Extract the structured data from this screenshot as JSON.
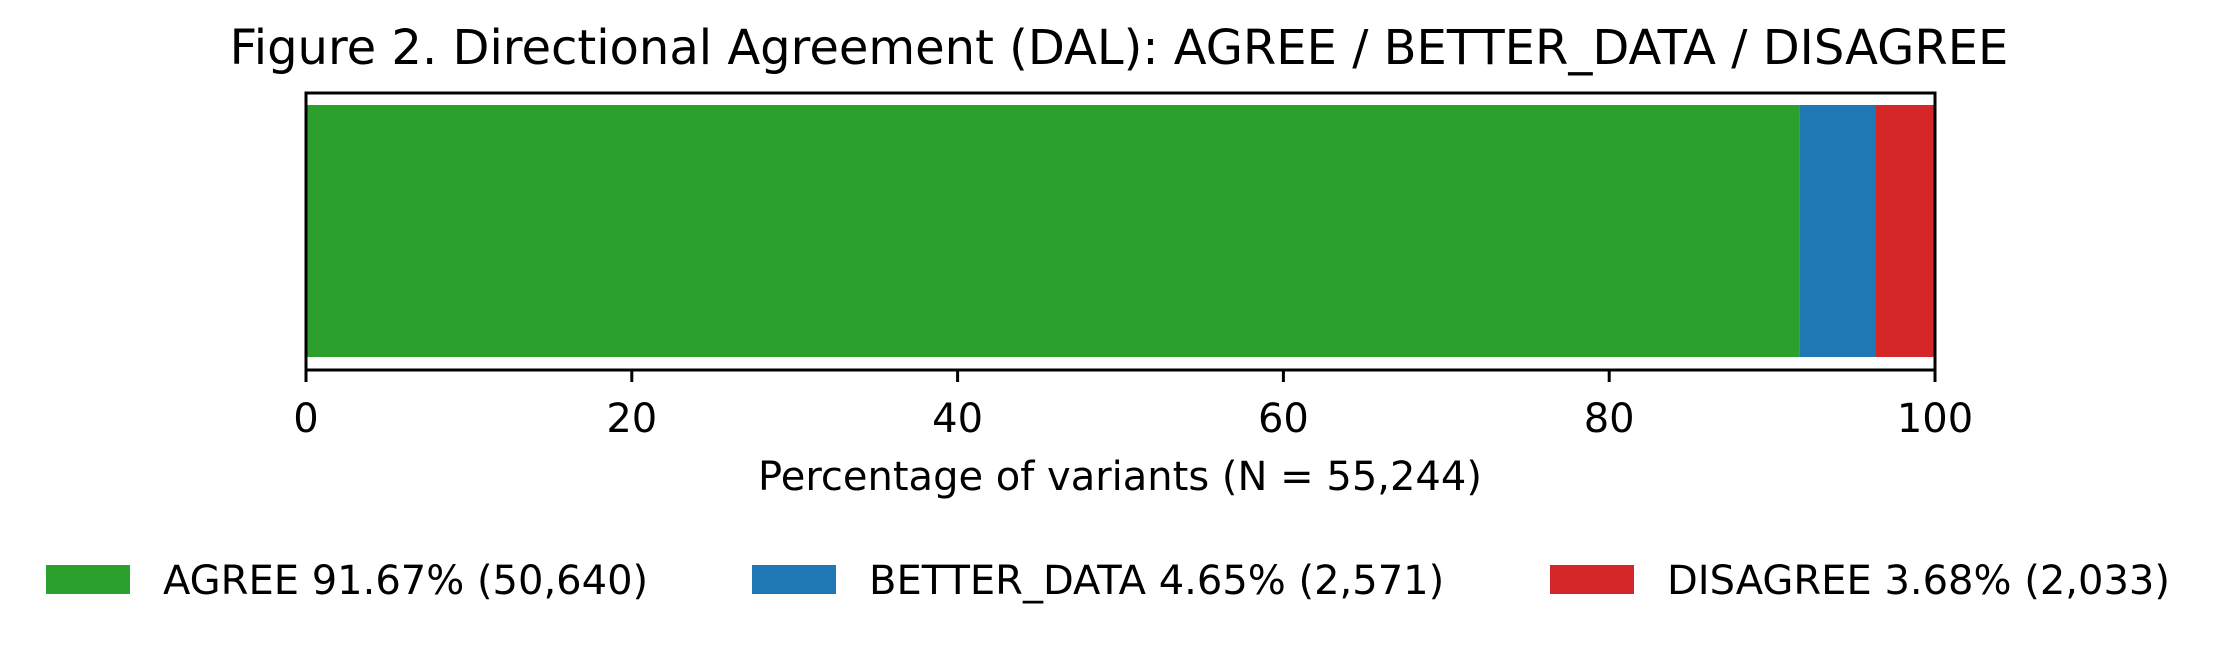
{
  "chart_data": {
    "type": "bar",
    "orientation": "horizontal",
    "stacked": true,
    "title": "Figure 2. Directional Agreement (DAL): AGREE / BETTER_DATA / DISAGREE",
    "xlabel": "Percentage of variants (N = 55,244)",
    "ylabel": "",
    "xlim": [
      0,
      100
    ],
    "xticks": [
      0,
      20,
      40,
      60,
      80,
      100
    ],
    "xtick_labels": [
      "0",
      "20",
      "40",
      "60",
      "80",
      "100"
    ],
    "grid": false,
    "legend_position": "bottom",
    "total_n": 55244,
    "series": [
      {
        "name": "AGREE",
        "value": 91.67,
        "count": 50640,
        "color": "#2ca02c",
        "legend_label": "AGREE 91.67% (50,640)"
      },
      {
        "name": "BETTER_DATA",
        "value": 4.65,
        "count": 2571,
        "color": "#1f77b4",
        "legend_label": "BETTER_DATA 4.65% (2,571)"
      },
      {
        "name": "DISAGREE",
        "value": 3.68,
        "count": 2033,
        "color": "#d62728",
        "legend_label": "DISAGREE 3.68% (2,033)"
      }
    ]
  }
}
